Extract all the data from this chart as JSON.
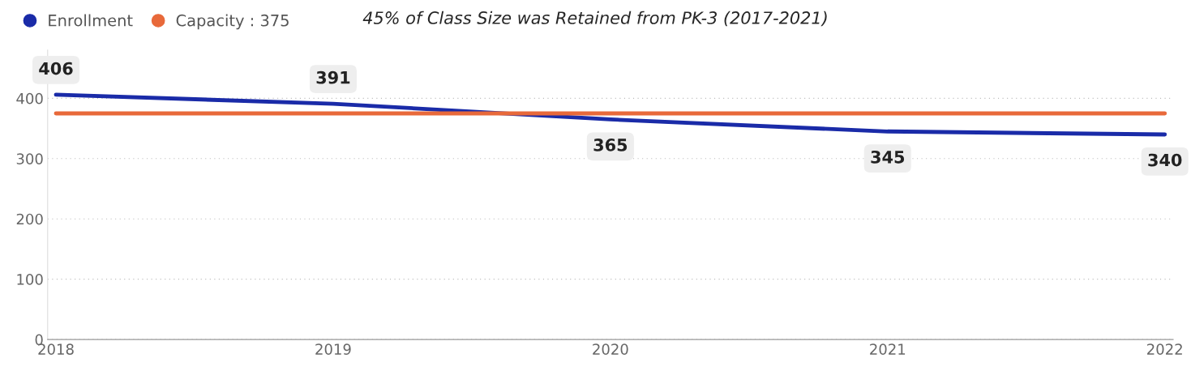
{
  "chart_data": {
    "type": "line",
    "title": "45% of Class Size was Retained from PK-3 (2017-2021)",
    "categories": [
      "2018",
      "2019",
      "2020",
      "2021",
      "2022"
    ],
    "series": [
      {
        "name": "Enrollment",
        "color": "#1a2ba8",
        "values": [
          406,
          391,
          365,
          345,
          340
        ],
        "value_labels": [
          "406",
          "391",
          "365",
          "345",
          "340"
        ]
      },
      {
        "name": "Capacity : 375",
        "color": "#e8693a",
        "values": [
          375,
          375,
          375,
          375,
          375
        ]
      }
    ],
    "ylim": [
      0,
      480
    ],
    "yticks": [
      0,
      100,
      200,
      300,
      400
    ],
    "grid": "y",
    "legend": "top left",
    "marker": "none",
    "line_style": "solid"
  }
}
